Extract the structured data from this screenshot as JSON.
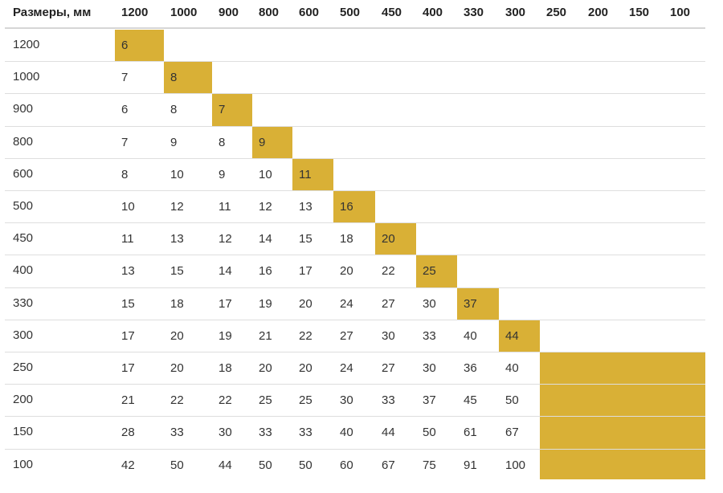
{
  "table": {
    "corner_header": "Размеры, мм",
    "column_headers": [
      "1200",
      "1000",
      "900",
      "800",
      "600",
      "500",
      "450",
      "400",
      "330",
      "300",
      "250",
      "200",
      "150",
      "100"
    ],
    "row_labels": [
      "1200",
      "1000",
      "900",
      "800",
      "600",
      "500",
      "450",
      "400",
      "330",
      "300",
      "250",
      "200",
      "150",
      "100"
    ],
    "rows": [
      [
        "6"
      ],
      [
        "7",
        "8"
      ],
      [
        "6",
        "8",
        "7"
      ],
      [
        "7",
        "9",
        "8",
        "9"
      ],
      [
        "8",
        "10",
        "9",
        "10",
        "11"
      ],
      [
        "10",
        "12",
        "11",
        "12",
        "13",
        "16"
      ],
      [
        "11",
        "13",
        "12",
        "14",
        "15",
        "18",
        "20"
      ],
      [
        "13",
        "15",
        "14",
        "16",
        "17",
        "20",
        "22",
        "25"
      ],
      [
        "15",
        "18",
        "17",
        "19",
        "20",
        "24",
        "27",
        "30",
        "37"
      ],
      [
        "17",
        "20",
        "19",
        "21",
        "22",
        "27",
        "30",
        "33",
        "40",
        "44"
      ],
      [
        "17",
        "20",
        "18",
        "20",
        "20",
        "24",
        "27",
        "30",
        "36",
        "40"
      ],
      [
        "21",
        "22",
        "22",
        "25",
        "25",
        "30",
        "33",
        "37",
        "45",
        "50"
      ],
      [
        "28",
        "33",
        "30",
        "33",
        "33",
        "40",
        "44",
        "50",
        "61",
        "67"
      ],
      [
        "42",
        "50",
        "44",
        "50",
        "50",
        "60",
        "67",
        "75",
        "91",
        "100"
      ]
    ],
    "highlight_color": "#d9b036"
  }
}
